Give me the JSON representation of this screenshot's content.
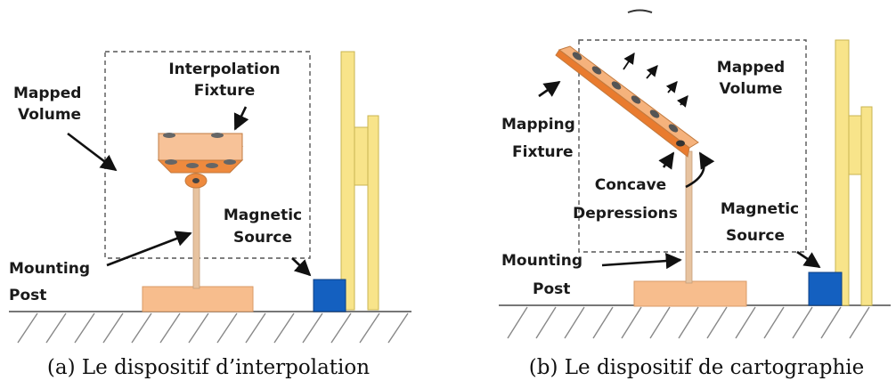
{
  "panel_a": {
    "labels": {
      "interpolation_1": "Interpolation",
      "interpolation_2": "Fixture",
      "mapped_1": "Mapped",
      "mapped_2": "Volume",
      "magnetic_1": "Magnetic",
      "magnetic_2": "Source",
      "mounting_1": "Mounting",
      "mounting_2": "Post"
    },
    "caption": "(a) Le dispositif d’interpolation"
  },
  "panel_b": {
    "labels": {
      "mapped_1": "Mapped",
      "mapped_2": "Volume",
      "mapping_1": "Mapping",
      "mapping_2": "Fixture",
      "concave_1": "Concave",
      "concave_2": "Depressions",
      "magnetic_1": "Magnetic",
      "magnetic_2": "Source",
      "mounting_1": "Mounting",
      "mounting_2": "Post"
    },
    "caption": "(b) Le dispositif de cartographie"
  },
  "colors": {
    "fixture_top": "#f7c298",
    "fixture_side": "#ee8a3e",
    "fixture_dark": "#d8712a",
    "post": "#e7c3a0",
    "base": "#f7bd8d",
    "magnet": "#1460c0",
    "wall": "#f8e48a",
    "wall_stroke": "#c9b451",
    "ground_hatch": "#888888",
    "depression": "#555555"
  }
}
